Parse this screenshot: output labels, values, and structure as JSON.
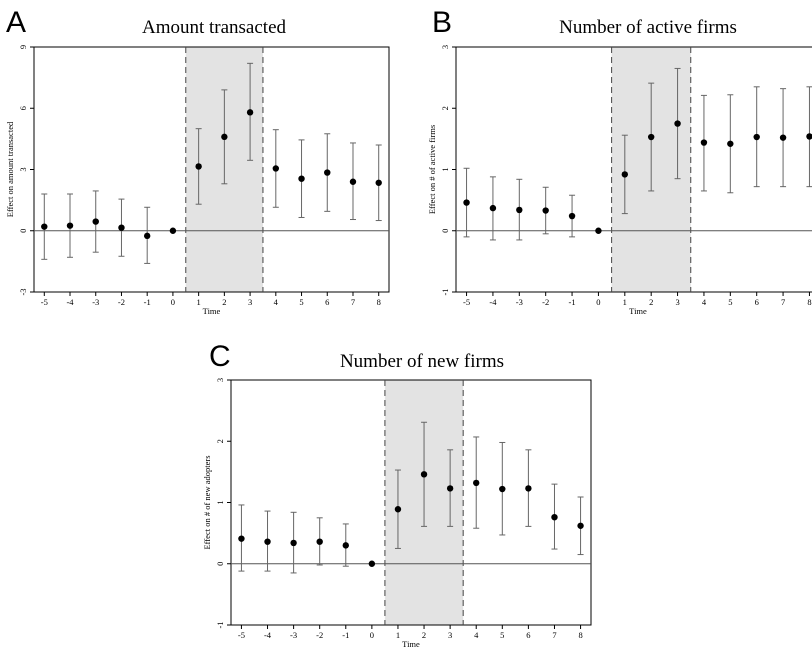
{
  "chart_data": [
    {
      "panel": "A",
      "type": "scatter",
      "title": "Amount transacted",
      "xlabel": "Time",
      "ylabel": "Effect on amount transacted",
      "xlim": [
        -5.4,
        8.4
      ],
      "ylim": [
        -3,
        9
      ],
      "yticks": [
        -3,
        0,
        3,
        6,
        9
      ],
      "x": [
        -5,
        -4,
        -3,
        -2,
        -1,
        0,
        1,
        2,
        3,
        4,
        5,
        6,
        7,
        8
      ],
      "estimate": [
        0.2,
        0.25,
        0.45,
        0.15,
        -0.25,
        0.0,
        3.15,
        4.6,
        5.8,
        3.05,
        2.55,
        2.85,
        2.4,
        2.35
      ],
      "ci_low": [
        -1.4,
        -1.3,
        -1.05,
        -1.25,
        -1.6,
        null,
        1.3,
        2.3,
        3.45,
        1.15,
        0.65,
        0.95,
        0.55,
        0.5
      ],
      "ci_high": [
        1.8,
        1.8,
        1.95,
        1.55,
        1.15,
        null,
        5.0,
        6.9,
        8.2,
        4.95,
        4.45,
        4.75,
        4.3,
        4.2
      ],
      "shaded_region": [
        0.5,
        3.5
      ],
      "reference_line_y": 0
    },
    {
      "panel": "B",
      "type": "scatter",
      "title": "Number of active firms",
      "xlabel": "Time",
      "ylabel": "Effect on # of active firms",
      "xlim": [
        -5.4,
        8.4
      ],
      "ylim": [
        -1,
        3
      ],
      "yticks": [
        -1,
        0,
        1,
        2,
        3
      ],
      "x": [
        -5,
        -4,
        -3,
        -2,
        -1,
        0,
        1,
        2,
        3,
        4,
        5,
        6,
        7,
        8
      ],
      "estimate": [
        0.46,
        0.37,
        0.34,
        0.33,
        0.24,
        0.0,
        0.92,
        1.53,
        1.75,
        1.44,
        1.42,
        1.53,
        1.52,
        1.54
      ],
      "ci_low": [
        -0.1,
        -0.15,
        -0.15,
        -0.05,
        -0.1,
        null,
        0.28,
        0.65,
        0.85,
        0.65,
        0.62,
        0.72,
        0.72,
        0.72
      ],
      "ci_high": [
        1.02,
        0.88,
        0.84,
        0.71,
        0.58,
        null,
        1.56,
        2.41,
        2.65,
        2.21,
        2.22,
        2.35,
        2.32,
        2.35
      ],
      "shaded_region": [
        0.5,
        3.5
      ],
      "reference_line_y": 0
    },
    {
      "panel": "C",
      "type": "scatter",
      "title": "Number of new firms",
      "xlabel": "Time",
      "ylabel": "Effect on # of new adopters",
      "xlim": [
        -5.4,
        8.4
      ],
      "ylim": [
        -1,
        3
      ],
      "yticks": [
        -1,
        0,
        1,
        2,
        3
      ],
      "x": [
        -5,
        -4,
        -3,
        -2,
        -1,
        0,
        1,
        2,
        3,
        4,
        5,
        6,
        7,
        8
      ],
      "estimate": [
        0.41,
        0.36,
        0.34,
        0.36,
        0.3,
        0.0,
        0.89,
        1.46,
        1.23,
        1.32,
        1.22,
        1.23,
        0.76,
        0.62
      ],
      "ci_low": [
        -0.12,
        -0.12,
        -0.15,
        -0.02,
        -0.04,
        null,
        0.25,
        0.61,
        0.61,
        0.58,
        0.47,
        0.61,
        0.24,
        0.15
      ],
      "ci_high": [
        0.96,
        0.86,
        0.84,
        0.75,
        0.65,
        null,
        1.53,
        2.31,
        1.86,
        2.07,
        1.98,
        1.86,
        1.3,
        1.09
      ],
      "shaded_region": [
        0.5,
        3.5
      ],
      "reference_line_y": 0
    }
  ]
}
